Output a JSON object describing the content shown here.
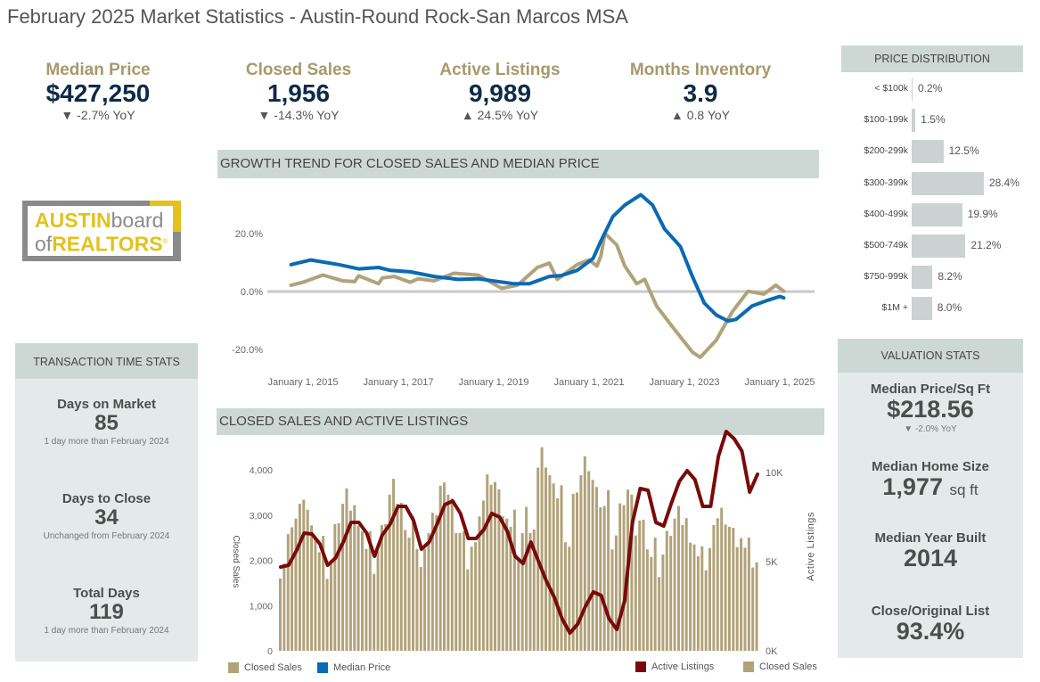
{
  "title": "February 2025 Market Statistics - Austin-Round Rock-San Marcos MSA",
  "colors": {
    "gold": "#a8996b",
    "navy": "#0d2a4a",
    "closed_sales": "#b1a27a",
    "median_price": "#0a6ab3",
    "active_listings": "#7a0a0a",
    "panel": "#e4eae9",
    "panel_header": "#cdd8d4"
  },
  "kpis": [
    {
      "label": "Median Price",
      "value": "$427,250",
      "change": "▼ -2.7% YoY"
    },
    {
      "label": "Closed Sales",
      "value": "1,956",
      "change": "▼ -14.3% YoY"
    },
    {
      "label": "Active Listings",
      "value": "9,989",
      "change": "▲ 24.5% YoY"
    },
    {
      "label": "Months Inventory",
      "value": "3.9",
      "change": "▲ 0.8 YoY"
    }
  ],
  "logo": {
    "text_line1a": "AUSTIN",
    "text_line1b": "board",
    "text_line2a": "of",
    "text_line2b": "REALTORS",
    "mark": "®"
  },
  "transaction_stats": {
    "header": "TRANSACTION TIME STATS",
    "items": [
      {
        "label": "Days on Market",
        "value": "85",
        "note": "1 day more than February 2024"
      },
      {
        "label": "Days to Close",
        "value": "34",
        "note": "Unchanged from February 2024"
      },
      {
        "label": "Total Days",
        "value": "119",
        "note": "1 day more than February 2024"
      }
    ]
  },
  "price_distribution": {
    "header": "PRICE DISTRIBUTION",
    "rows": [
      {
        "label": "< $100k",
        "pct": 0.2,
        "text": "0.2%"
      },
      {
        "label": "$100-199k",
        "pct": 1.5,
        "text": "1.5%"
      },
      {
        "label": "$200-299k",
        "pct": 12.5,
        "text": "12.5%"
      },
      {
        "label": "$300-399k",
        "pct": 28.4,
        "text": "28.4%"
      },
      {
        "label": "$400-499k",
        "pct": 19.9,
        "text": "19.9%"
      },
      {
        "label": "$500-749k",
        "pct": 21.2,
        "text": "21.2%"
      },
      {
        "label": "$750-999k",
        "pct": 8.2,
        "text": "8.2%"
      },
      {
        "label": "$1M +",
        "pct": 8.0,
        "text": "8.0%"
      }
    ]
  },
  "valuation_stats": {
    "header": "VALUATION STATS",
    "price_sqft": {
      "label": "Median Price/Sq Ft",
      "value": "$218.56",
      "change": "▼ -2.0% YoY"
    },
    "home_size": {
      "label": "Median Home Size",
      "value": "1,977",
      "unit": "sq ft"
    },
    "year_built": {
      "label": "Median Year Built",
      "value": "2014"
    },
    "close_list": {
      "label": "Close/Original List",
      "value": "93.4%"
    }
  },
  "chart_data": [
    {
      "type": "line",
      "title": "GROWTH TREND FOR CLOSED SALES AND MEDIAN PRICE",
      "y_ticks": [
        "20.0%",
        "0.0%",
        "-20.0%"
      ],
      "y_tick_values": [
        20,
        0,
        -20
      ],
      "x_ticks": [
        "January 1, 2015",
        "January 1, 2017",
        "January 1, 2019",
        "January 1, 2021",
        "January 1, 2023",
        "January 1, 2025"
      ],
      "x_tick_values": [
        "2015-01",
        "2017-01",
        "2019-01",
        "2021-01",
        "2023-01",
        "2025-01"
      ],
      "ylim": [
        -27,
        38
      ],
      "zero_line": true,
      "legend": [
        {
          "name": "Closed Sales",
          "color": "#b1a27a"
        },
        {
          "name": "Median Price",
          "color": "#0a6ab3"
        }
      ],
      "legend_placement": "bottom-left",
      "series": [
        {
          "name": "Closed Sales",
          "color": "#b1a27a",
          "points": [
            [
              "2014-10",
              2.2
            ],
            [
              "2015-01",
              3.2
            ],
            [
              "2015-06",
              5.7
            ],
            [
              "2015-11",
              3.7
            ],
            [
              "2016-02",
              3.4
            ],
            [
              "2016-03",
              5.4
            ],
            [
              "2016-08",
              2.7
            ],
            [
              "2016-09",
              4.7
            ],
            [
              "2016-12",
              5.2
            ],
            [
              "2017-04",
              3.2
            ],
            [
              "2017-06",
              4.4
            ],
            [
              "2017-10",
              3.7
            ],
            [
              "2018-03",
              6.3
            ],
            [
              "2018-09",
              5.7
            ],
            [
              "2019-03",
              1.1
            ],
            [
              "2019-07",
              2.2
            ],
            [
              "2019-12",
              8.3
            ],
            [
              "2020-03",
              9.8
            ],
            [
              "2020-05",
              4.2
            ],
            [
              "2020-10",
              9.3
            ],
            [
              "2021-01",
              10.9
            ],
            [
              "2021-03",
              8.8
            ],
            [
              "2021-04",
              12.4
            ],
            [
              "2021-05",
              20.1
            ],
            [
              "2021-08",
              16
            ],
            [
              "2021-10",
              8.8
            ],
            [
              "2022-01",
              2.7
            ],
            [
              "2022-03",
              4.2
            ],
            [
              "2022-06",
              -5
            ],
            [
              "2022-10",
              -12.2
            ],
            [
              "2023-03",
              -20.9
            ],
            [
              "2023-05",
              -22.7
            ],
            [
              "2023-09",
              -16.8
            ],
            [
              "2024-01",
              -7.1
            ],
            [
              "2024-05",
              0.1
            ],
            [
              "2024-09",
              -0.9
            ],
            [
              "2024-12",
              2.2
            ],
            [
              "2025-02",
              0.1
            ]
          ]
        },
        {
          "name": "Median Price",
          "color": "#0a6ab3",
          "points": [
            [
              "2014-10",
              9.3
            ],
            [
              "2015-03",
              10.9
            ],
            [
              "2015-10",
              9.3
            ],
            [
              "2016-03",
              7.8
            ],
            [
              "2016-08",
              8.3
            ],
            [
              "2016-11",
              7.3
            ],
            [
              "2017-04",
              6.8
            ],
            [
              "2017-10",
              5.2
            ],
            [
              "2018-04",
              4.2
            ],
            [
              "2018-09",
              4.4
            ],
            [
              "2019-06",
              2.7
            ],
            [
              "2019-10",
              2.7
            ],
            [
              "2020-03",
              5.2
            ],
            [
              "2020-06",
              5.5
            ],
            [
              "2020-10",
              7.3
            ],
            [
              "2021-02",
              11.4
            ],
            [
              "2021-04",
              17.5
            ],
            [
              "2021-07",
              25.9
            ],
            [
              "2021-10",
              29.8
            ],
            [
              "2022-02",
              33.4
            ],
            [
              "2022-05",
              29.8
            ],
            [
              "2022-08",
              21.6
            ],
            [
              "2022-12",
              15.5
            ],
            [
              "2023-03",
              5.2
            ],
            [
              "2023-06",
              -4
            ],
            [
              "2023-09",
              -8.1
            ],
            [
              "2023-12",
              -10.2
            ],
            [
              "2024-02",
              -9.6
            ],
            [
              "2024-06",
              -5
            ],
            [
              "2024-10",
              -3
            ],
            [
              "2025-01",
              -1.7
            ],
            [
              "2025-02",
              -2.2
            ]
          ]
        }
      ]
    },
    {
      "type": "bar",
      "title": "CLOSED SALES AND ACTIVE LISTINGS",
      "ylabel": "Closed Sales",
      "y2label": "Active Listings",
      "y_ticks": [
        "4,000",
        "3,000",
        "2,000",
        "1,000",
        "0"
      ],
      "y_tick_values": [
        4000,
        3000,
        2000,
        1000,
        0
      ],
      "y2_ticks": [
        "10K",
        "5K",
        "0K"
      ],
      "y2_tick_values": [
        10,
        5,
        0
      ],
      "ylim": [
        0,
        4600
      ],
      "y2lim": [
        0,
        12.7
      ],
      "legend": [
        {
          "name": "Active Listings",
          "color": "#7a0a0a"
        },
        {
          "name": "Closed Sales",
          "color": "#b1a27a"
        }
      ],
      "legend_placement": "bottom-right",
      "closed_sales": [
        1600,
        1930,
        2580,
        2730,
        2920,
        3250,
        3340,
        3120,
        2770,
        2500,
        2180,
        2540,
        1590,
        2000,
        2800,
        2820,
        3250,
        3590,
        3100,
        3220,
        2770,
        2640,
        2250,
        2640,
        1700,
        2200,
        2780,
        2800,
        3450,
        3800,
        3250,
        3270,
        2670,
        2500,
        2980,
        2250,
        1850,
        2250,
        2600,
        3050,
        3000,
        3650,
        3720,
        3450,
        3370,
        2600,
        2600,
        2640,
        1800,
        2300,
        2400,
        2970,
        3320,
        3900,
        3670,
        3730,
        3570,
        2970,
        2920,
        2740,
        3120,
        2030,
        2600,
        3180,
        2600,
        2680,
        4050,
        4500,
        4050,
        3880,
        3700,
        3370,
        3660,
        2400,
        2300,
        3470,
        3500,
        3880,
        4300,
        3970,
        3780,
        3620,
        3170,
        3200,
        3550,
        2240,
        2550,
        3260,
        3220,
        3560,
        3450,
        2550,
        2880,
        2900,
        2240,
        2070,
        2500,
        1630,
        2130,
        2650,
        2540,
        2920,
        3200,
        2780,
        2930,
        2390,
        2350,
        2090,
        2310,
        1780,
        2270,
        2780,
        2930,
        3160,
        2790,
        2740,
        2720,
        2290,
        2490,
        2280,
        2500,
        1840,
        1956
      ],
      "active_listings_k": [
        4.7,
        4.8,
        5.6,
        6.6,
        6.55,
        6.0,
        4.8,
        5.2,
        6.1,
        7.2,
        7.2,
        6.6,
        5.3,
        6.5,
        7.1,
        8.1,
        8.1,
        7.3,
        5.7,
        6.1,
        7.1,
        8.2,
        8.4,
        7.7,
        6.3,
        6.3,
        6.8,
        7.7,
        7.5,
        6.7,
        5.3,
        4.9,
        6.1,
        5.0,
        3.9,
        3.0,
        1.8,
        1.0,
        1.5,
        2.5,
        3.3,
        3.1,
        1.8,
        1.2,
        2.8,
        7.2,
        9.1,
        9.0,
        7.2,
        7.0,
        8.3,
        9.5,
        10.1,
        9.6,
        8.1,
        8.1,
        10.9,
        12.3,
        11.9,
        11.2,
        8.9,
        9.9
      ]
    }
  ]
}
